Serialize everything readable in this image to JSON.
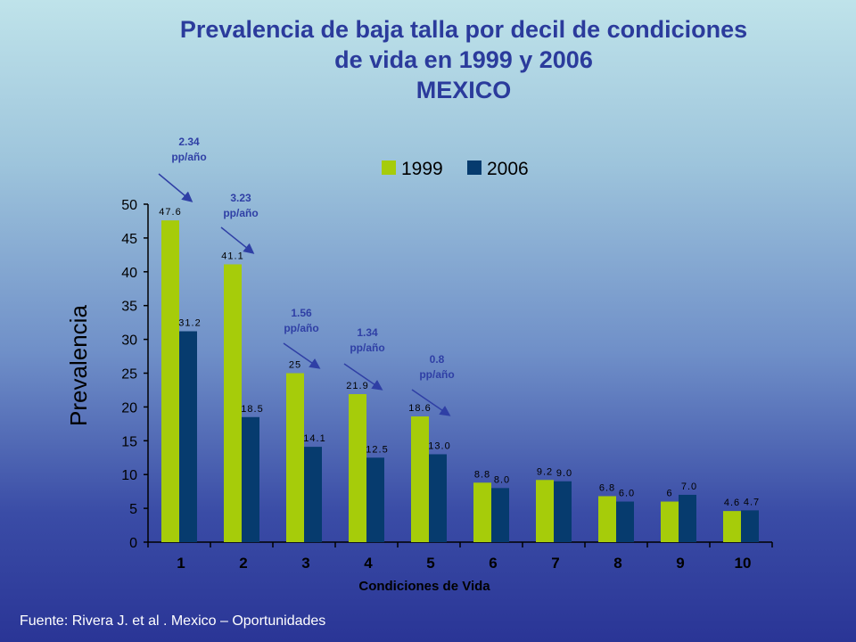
{
  "title_lines": [
    "Prevalencia de baja talla por decil de condiciones",
    "de vida en 1999 y 2006",
    "MEXICO"
  ],
  "source": "Fuente: Rivera J. et al . Mexico – Oportunidades",
  "colors": {
    "s1999": "#a6cc0a",
    "s2006": "#063b6e",
    "title": "#2b3b9c",
    "annotation": "#2f3fa5"
  },
  "annotations": [
    {
      "line1": "2.34",
      "line2": "pp/año",
      "decile": "1"
    },
    {
      "line1": "3.23",
      "line2": "pp/año",
      "decile": "2"
    },
    {
      "line1": "1.56",
      "line2": "pp/año",
      "decile": "3"
    },
    {
      "line1": "1.34",
      "line2": "pp/año",
      "decile": "4"
    },
    {
      "line1": "0.8",
      "line2": "pp/año",
      "decile": "5"
    }
  ],
  "chart_data": {
    "type": "bar",
    "categories": [
      "1",
      "2",
      "3",
      "4",
      "5",
      "6",
      "7",
      "8",
      "9",
      "10"
    ],
    "series": [
      {
        "name": "1999",
        "values": [
          47.6,
          41.1,
          25,
          21.9,
          18.6,
          8.8,
          9.2,
          6.8,
          6,
          4.6
        ],
        "labels": [
          "47.6",
          "41.1",
          "25",
          "21.9",
          "18.6",
          "8.8",
          "9.2",
          "6.8",
          "6",
          "4.6"
        ]
      },
      {
        "name": "2006",
        "values": [
          31.2,
          18.5,
          14.1,
          12.5,
          13.0,
          8.0,
          9.0,
          6.0,
          7.0,
          4.7
        ],
        "labels": [
          "31.2",
          "18.5",
          "14.1",
          "12.5",
          "13.0",
          "8.0",
          "9.0",
          "6.0",
          "7.0",
          "4.7"
        ]
      }
    ],
    "title": "Prevalencia de baja talla por decil de condiciones de vida en 1999 y 2006 MEXICO",
    "xlabel": "Condiciones de Vida",
    "ylabel": "Prevalencia",
    "ylim": [
      0,
      50
    ],
    "yticks": [
      "0",
      "5",
      "10",
      "15",
      "20",
      "25",
      "30",
      "35",
      "40",
      "45",
      "50"
    ],
    "legend": "top-right",
    "grid": false
  }
}
